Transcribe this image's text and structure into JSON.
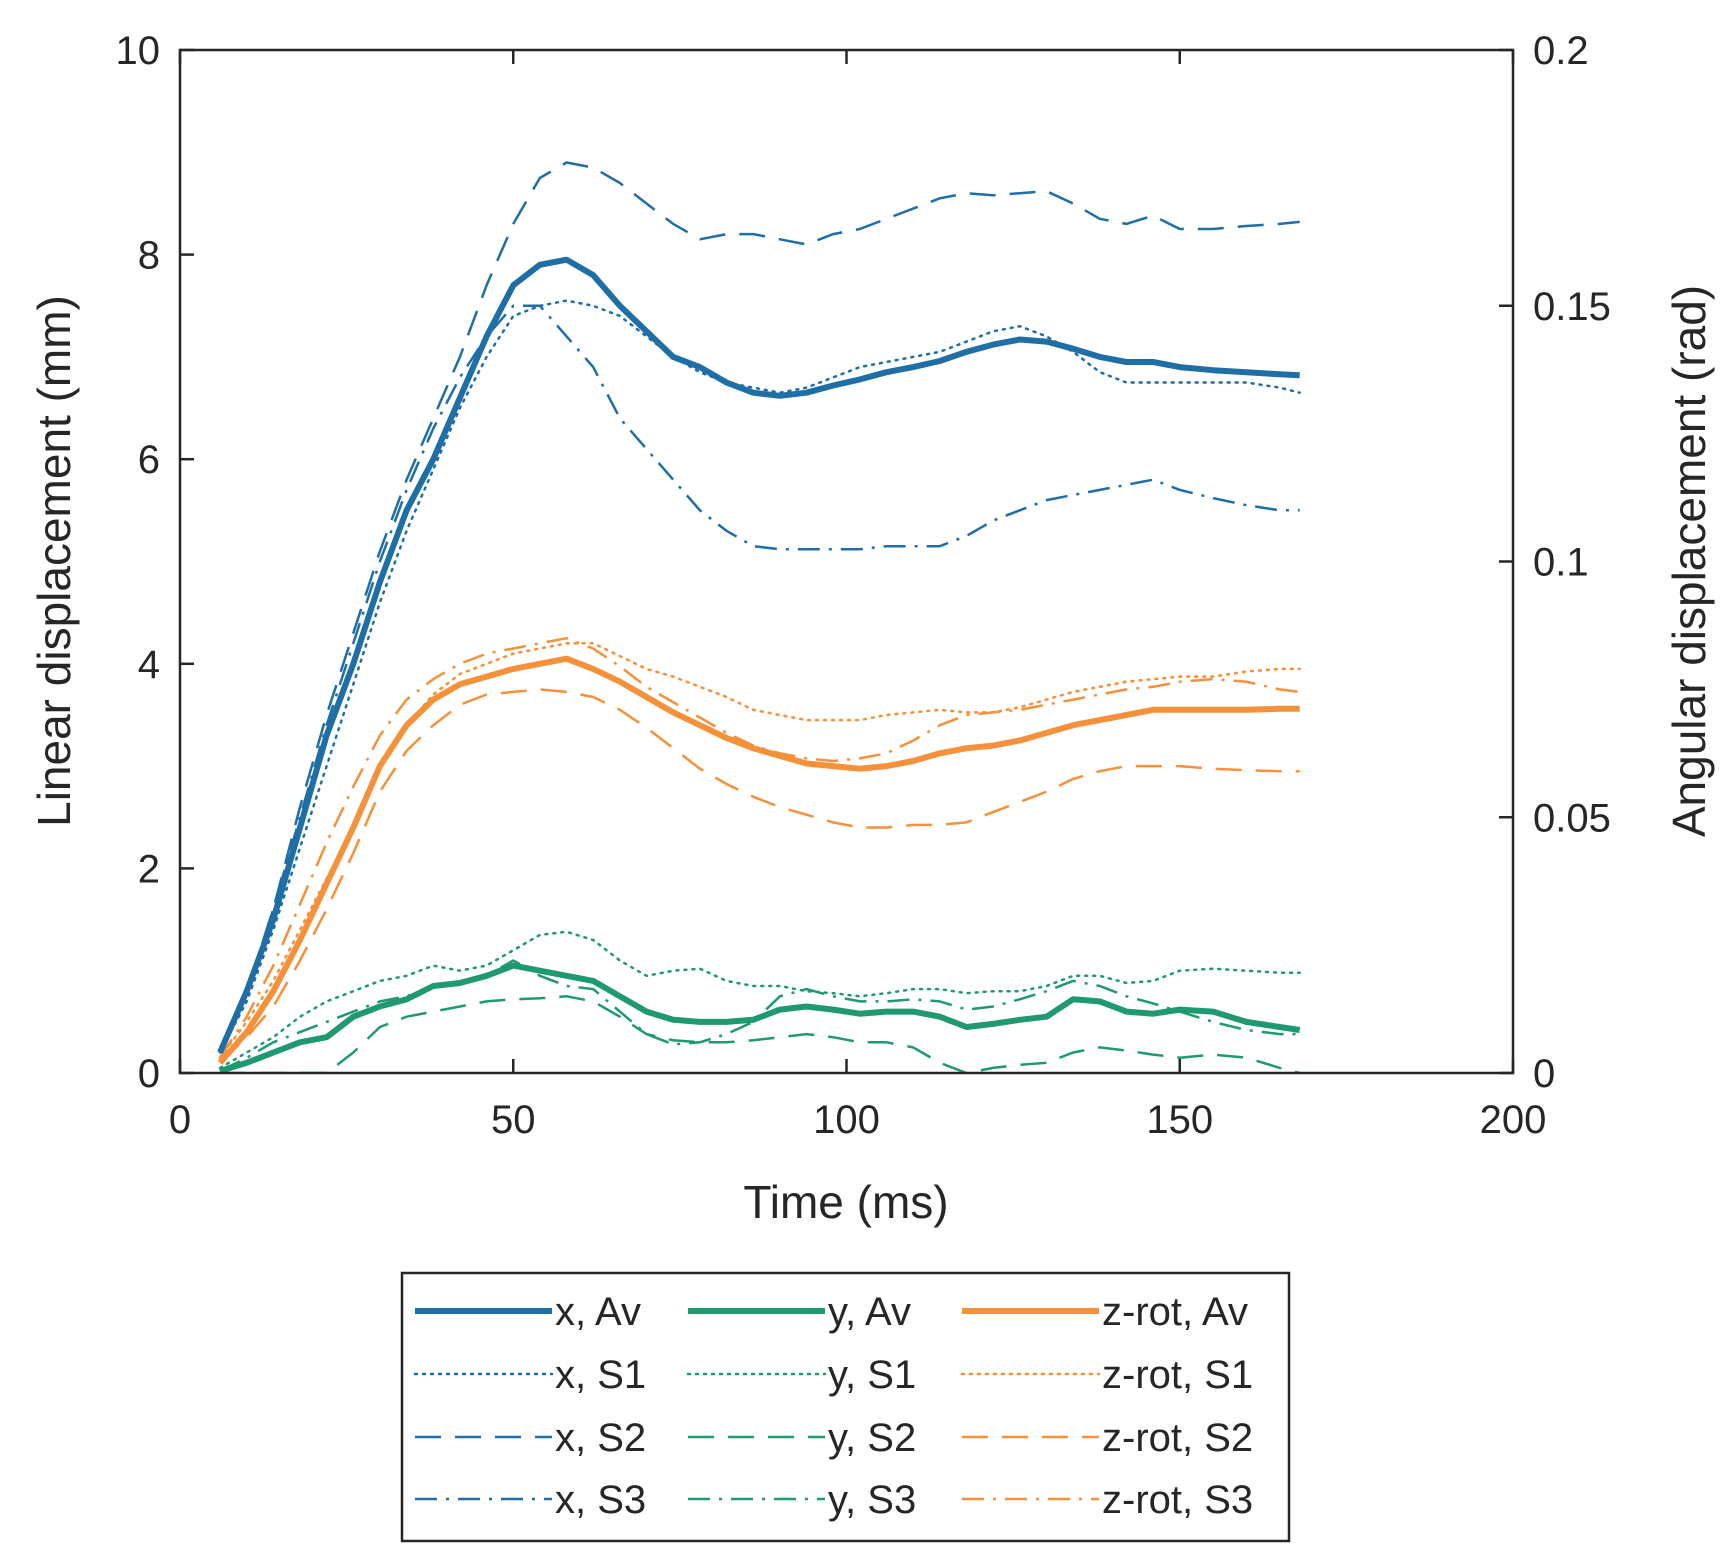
{
  "chart_data": {
    "type": "line",
    "xlabel": "Time (ms)",
    "ylabel_left": "Linear displacement (mm)",
    "ylabel_right": "Angular displacement (rad)",
    "xlim": [
      0,
      200
    ],
    "ylim_left": [
      0,
      10
    ],
    "ylim_right": [
      0,
      0.2
    ],
    "xticks": [
      "0",
      "50",
      "100",
      "150",
      "200"
    ],
    "yticks_left": [
      "0",
      "2",
      "4",
      "6",
      "8",
      "10"
    ],
    "yticks_right": [
      "0",
      "0.05",
      "0.1",
      "0.15",
      "0.2"
    ],
    "grid": false,
    "legend_position": "below",
    "colors": {
      "x": "#1f6ea6",
      "y": "#1f9a6e",
      "z": "#f4913a"
    },
    "series": [
      {
        "name": "x, Av",
        "axis": "left",
        "style": "solid",
        "color": "#1f6ea6",
        "x": [
          6,
          10,
          14,
          18,
          22,
          26,
          30,
          34,
          38,
          42,
          46,
          50,
          54,
          58,
          62,
          66,
          70,
          74,
          78,
          82,
          86,
          90,
          94,
          98,
          102,
          106,
          110,
          114,
          118,
          122,
          126,
          130,
          134,
          138,
          142,
          146,
          150,
          155,
          160,
          165,
          168
        ],
        "y": [
          0.2,
          0.8,
          1.5,
          2.4,
          3.3,
          4.0,
          4.8,
          5.5,
          6.0,
          6.6,
          7.2,
          7.7,
          7.9,
          7.95,
          7.8,
          7.5,
          7.25,
          7.0,
          6.9,
          6.75,
          6.65,
          6.62,
          6.65,
          6.72,
          6.78,
          6.85,
          6.9,
          6.96,
          7.05,
          7.12,
          7.17,
          7.15,
          7.08,
          7.0,
          6.95,
          6.95,
          6.9,
          6.87,
          6.85,
          6.83,
          6.82
        ]
      },
      {
        "name": "x, S1",
        "axis": "left",
        "style": "dotted",
        "color": "#1f6ea6",
        "x": [
          6,
          10,
          14,
          18,
          22,
          26,
          30,
          34,
          38,
          42,
          46,
          50,
          54,
          58,
          62,
          66,
          70,
          74,
          78,
          82,
          86,
          90,
          94,
          98,
          102,
          106,
          110,
          114,
          118,
          122,
          126,
          130,
          134,
          138,
          142,
          146,
          150,
          155,
          160,
          165,
          168
        ],
        "y": [
          0.2,
          0.7,
          1.4,
          2.2,
          3.0,
          3.8,
          4.6,
          5.3,
          5.9,
          6.5,
          7.0,
          7.4,
          7.5,
          7.55,
          7.5,
          7.4,
          7.2,
          7.0,
          6.85,
          6.75,
          6.7,
          6.65,
          6.7,
          6.8,
          6.9,
          6.95,
          7.0,
          7.05,
          7.15,
          7.25,
          7.3,
          7.2,
          7.05,
          6.85,
          6.75,
          6.75,
          6.75,
          6.75,
          6.75,
          6.7,
          6.65
        ]
      },
      {
        "name": "x, S2",
        "axis": "left",
        "style": "dashed",
        "color": "#1f6ea6",
        "x": [
          6,
          10,
          14,
          18,
          22,
          26,
          30,
          34,
          38,
          42,
          46,
          50,
          54,
          58,
          62,
          66,
          70,
          74,
          78,
          82,
          86,
          90,
          94,
          98,
          102,
          106,
          110,
          114,
          118,
          122,
          126,
          130,
          134,
          138,
          142,
          146,
          150,
          155,
          160,
          165,
          168
        ],
        "y": [
          0.2,
          0.8,
          1.6,
          2.6,
          3.5,
          4.3,
          5.1,
          5.8,
          6.4,
          7.0,
          7.7,
          8.3,
          8.75,
          8.9,
          8.85,
          8.7,
          8.5,
          8.3,
          8.15,
          8.2,
          8.2,
          8.15,
          8.1,
          8.2,
          8.25,
          8.35,
          8.45,
          8.55,
          8.6,
          8.58,
          8.6,
          8.62,
          8.5,
          8.35,
          8.3,
          8.38,
          8.25,
          8.25,
          8.28,
          8.3,
          8.32
        ]
      },
      {
        "name": "x, S3",
        "axis": "left",
        "style": "dashdot",
        "color": "#1f6ea6",
        "x": [
          6,
          10,
          14,
          18,
          22,
          26,
          30,
          34,
          38,
          42,
          46,
          50,
          54,
          58,
          62,
          66,
          70,
          74,
          78,
          82,
          86,
          90,
          94,
          98,
          102,
          106,
          110,
          114,
          118,
          122,
          126,
          130,
          134,
          138,
          142,
          146,
          150,
          155,
          160,
          165,
          168
        ],
        "y": [
          0.2,
          0.8,
          1.6,
          2.5,
          3.4,
          4.2,
          5.0,
          5.7,
          6.3,
          6.8,
          7.2,
          7.5,
          7.5,
          7.2,
          6.9,
          6.4,
          6.1,
          5.8,
          5.5,
          5.3,
          5.15,
          5.12,
          5.12,
          5.12,
          5.12,
          5.15,
          5.15,
          5.15,
          5.25,
          5.4,
          5.5,
          5.6,
          5.65,
          5.7,
          5.75,
          5.8,
          5.7,
          5.62,
          5.55,
          5.5,
          5.5
        ]
      },
      {
        "name": "y, Av",
        "axis": "left",
        "style": "solid",
        "color": "#1f9a6e",
        "x": [
          6,
          10,
          14,
          18,
          22,
          26,
          30,
          34,
          38,
          42,
          46,
          50,
          54,
          58,
          62,
          66,
          70,
          74,
          78,
          82,
          86,
          90,
          94,
          98,
          102,
          106,
          110,
          114,
          118,
          122,
          126,
          130,
          134,
          138,
          142,
          146,
          150,
          155,
          160,
          165,
          168
        ],
        "y": [
          0.02,
          0.1,
          0.2,
          0.3,
          0.35,
          0.55,
          0.65,
          0.72,
          0.85,
          0.88,
          0.95,
          1.05,
          1.0,
          0.95,
          0.9,
          0.75,
          0.6,
          0.52,
          0.5,
          0.5,
          0.52,
          0.62,
          0.65,
          0.62,
          0.58,
          0.6,
          0.6,
          0.55,
          0.45,
          0.48,
          0.52,
          0.55,
          0.72,
          0.7,
          0.6,
          0.58,
          0.62,
          0.6,
          0.5,
          0.45,
          0.42
        ]
      },
      {
        "name": "y, S1",
        "axis": "left",
        "style": "dotted",
        "color": "#1f9a6e",
        "x": [
          6,
          10,
          14,
          18,
          22,
          26,
          30,
          34,
          38,
          42,
          46,
          50,
          54,
          58,
          62,
          66,
          70,
          74,
          78,
          82,
          86,
          90,
          94,
          98,
          102,
          106,
          110,
          114,
          118,
          122,
          126,
          130,
          134,
          138,
          142,
          146,
          150,
          155,
          160,
          165,
          168
        ],
        "y": [
          0.05,
          0.2,
          0.35,
          0.55,
          0.7,
          0.8,
          0.9,
          0.95,
          1.05,
          1.0,
          1.05,
          1.2,
          1.35,
          1.38,
          1.3,
          1.1,
          0.95,
          1.0,
          1.02,
          0.9,
          0.85,
          0.85,
          0.8,
          0.78,
          0.75,
          0.78,
          0.82,
          0.82,
          0.78,
          0.8,
          0.8,
          0.85,
          0.95,
          0.95,
          0.88,
          0.9,
          1.0,
          1.02,
          1.0,
          0.98,
          0.98
        ]
      },
      {
        "name": "y, S2",
        "axis": "left",
        "style": "dashed",
        "color": "#1f9a6e",
        "x": [
          6,
          10,
          14,
          18,
          22,
          26,
          30,
          34,
          38,
          42,
          46,
          50,
          54,
          58,
          62,
          66,
          70,
          74,
          78,
          82,
          86,
          90,
          94,
          98,
          102,
          106,
          110,
          114,
          118,
          122,
          126,
          130,
          134,
          138,
          142,
          146,
          150,
          155,
          160,
          165,
          168
        ],
        "y": [
          0.0,
          0.0,
          0.0,
          0.0,
          0.0,
          0.2,
          0.45,
          0.55,
          0.6,
          0.65,
          0.7,
          0.72,
          0.73,
          0.75,
          0.7,
          0.55,
          0.38,
          0.32,
          0.3,
          0.3,
          0.32,
          0.35,
          0.38,
          0.35,
          0.3,
          0.3,
          0.25,
          0.1,
          0.0,
          0.05,
          0.08,
          0.1,
          0.2,
          0.25,
          0.22,
          0.18,
          0.15,
          0.18,
          0.15,
          0.05,
          0.0
        ]
      },
      {
        "name": "y, S3",
        "axis": "left",
        "style": "dashdot",
        "color": "#1f9a6e",
        "x": [
          6,
          10,
          14,
          18,
          22,
          26,
          30,
          34,
          38,
          42,
          46,
          50,
          54,
          58,
          62,
          66,
          70,
          74,
          78,
          82,
          86,
          90,
          94,
          98,
          102,
          106,
          110,
          114,
          118,
          122,
          126,
          130,
          134,
          138,
          142,
          146,
          150,
          155,
          160,
          165,
          168
        ],
        "y": [
          0.02,
          0.15,
          0.3,
          0.4,
          0.5,
          0.6,
          0.7,
          0.75,
          0.85,
          0.9,
          0.95,
          1.1,
          0.95,
          0.85,
          0.82,
          0.6,
          0.38,
          0.28,
          0.3,
          0.38,
          0.5,
          0.75,
          0.82,
          0.75,
          0.7,
          0.7,
          0.72,
          0.7,
          0.62,
          0.65,
          0.72,
          0.8,
          0.9,
          0.85,
          0.75,
          0.68,
          0.6,
          0.5,
          0.42,
          0.38,
          0.38
        ]
      },
      {
        "name": "z-rot, Av",
        "axis": "right",
        "style": "solid",
        "color": "#f4913a",
        "x": [
          6,
          10,
          14,
          18,
          22,
          26,
          30,
          34,
          38,
          42,
          46,
          50,
          54,
          58,
          62,
          66,
          70,
          74,
          78,
          82,
          86,
          90,
          94,
          98,
          102,
          106,
          110,
          114,
          118,
          122,
          126,
          130,
          134,
          138,
          142,
          146,
          150,
          155,
          160,
          165,
          168
        ],
        "y": [
          0.002,
          0.008,
          0.016,
          0.026,
          0.037,
          0.048,
          0.06,
          0.068,
          0.073,
          0.076,
          0.0775,
          0.079,
          0.08,
          0.081,
          0.079,
          0.0765,
          0.0735,
          0.0705,
          0.068,
          0.0655,
          0.0635,
          0.062,
          0.0605,
          0.06,
          0.0595,
          0.06,
          0.061,
          0.0625,
          0.0635,
          0.064,
          0.065,
          0.0665,
          0.068,
          0.069,
          0.07,
          0.071,
          0.071,
          0.071,
          0.071,
          0.0712,
          0.0712
        ]
      },
      {
        "name": "z-rot, S1",
        "axis": "right",
        "style": "dotted",
        "color": "#f4913a",
        "x": [
          6,
          10,
          14,
          18,
          22,
          26,
          30,
          34,
          38,
          42,
          46,
          50,
          54,
          58,
          62,
          66,
          70,
          74,
          78,
          82,
          86,
          90,
          94,
          98,
          102,
          106,
          110,
          114,
          118,
          122,
          126,
          130,
          134,
          138,
          142,
          146,
          150,
          155,
          160,
          165,
          168
        ],
        "y": [
          0.003,
          0.01,
          0.018,
          0.028,
          0.038,
          0.048,
          0.06,
          0.068,
          0.074,
          0.078,
          0.08,
          0.082,
          0.083,
          0.084,
          0.084,
          0.0815,
          0.079,
          0.0775,
          0.0755,
          0.0735,
          0.071,
          0.07,
          0.069,
          0.069,
          0.069,
          0.07,
          0.0705,
          0.071,
          0.0705,
          0.0705,
          0.0715,
          0.073,
          0.0745,
          0.0755,
          0.0765,
          0.077,
          0.0775,
          0.0775,
          0.0785,
          0.079,
          0.079
        ]
      },
      {
        "name": "z-rot, S2",
        "axis": "right",
        "style": "dashed",
        "color": "#f4913a",
        "x": [
          6,
          10,
          14,
          18,
          22,
          26,
          30,
          34,
          38,
          42,
          46,
          50,
          54,
          58,
          62,
          66,
          70,
          74,
          78,
          82,
          86,
          90,
          94,
          98,
          102,
          106,
          110,
          114,
          118,
          122,
          126,
          130,
          134,
          138,
          142,
          146,
          150,
          155,
          160,
          165,
          168
        ],
        "y": [
          0.002,
          0.007,
          0.013,
          0.022,
          0.032,
          0.043,
          0.055,
          0.063,
          0.068,
          0.072,
          0.074,
          0.0745,
          0.075,
          0.0745,
          0.0735,
          0.071,
          0.0675,
          0.0635,
          0.0595,
          0.0565,
          0.054,
          0.052,
          0.0505,
          0.049,
          0.048,
          0.048,
          0.0485,
          0.0485,
          0.049,
          0.051,
          0.053,
          0.055,
          0.0575,
          0.059,
          0.06,
          0.06,
          0.06,
          0.0595,
          0.0592,
          0.059,
          0.059
        ]
      },
      {
        "name": "z-rot, S3",
        "axis": "right",
        "style": "dashdot",
        "color": "#f4913a",
        "x": [
          6,
          10,
          14,
          18,
          22,
          26,
          30,
          34,
          38,
          42,
          46,
          50,
          54,
          58,
          62,
          66,
          70,
          74,
          78,
          82,
          86,
          90,
          94,
          98,
          102,
          106,
          110,
          114,
          118,
          122,
          126,
          130,
          134,
          138,
          142,
          146,
          150,
          155,
          160,
          165,
          168
        ],
        "y": [
          0.003,
          0.011,
          0.021,
          0.033,
          0.045,
          0.056,
          0.066,
          0.073,
          0.077,
          0.08,
          0.082,
          0.083,
          0.084,
          0.085,
          0.083,
          0.0795,
          0.0755,
          0.0725,
          0.0695,
          0.0665,
          0.064,
          0.0625,
          0.0615,
          0.061,
          0.0615,
          0.0625,
          0.065,
          0.068,
          0.07,
          0.0705,
          0.071,
          0.072,
          0.073,
          0.074,
          0.075,
          0.0755,
          0.0765,
          0.077,
          0.0765,
          0.075,
          0.0745
        ]
      }
    ]
  },
  "legend": [
    [
      "x, Av",
      "y, Av",
      "z-rot, Av"
    ],
    [
      "x, S1",
      "y, S1",
      "z-rot, S1"
    ],
    [
      "x, S2",
      "y, S2",
      "z-rot, S2"
    ],
    [
      "x, S3",
      "y, S3",
      "z-rot, S3"
    ]
  ]
}
